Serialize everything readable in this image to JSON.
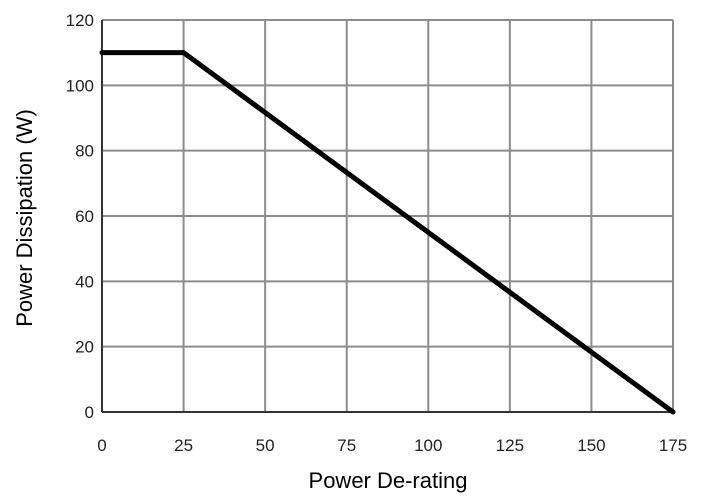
{
  "chart_data": {
    "type": "line",
    "title": "",
    "xlabel": "Power De-rating",
    "ylabel": "Power Dissipation (W)",
    "xlim": [
      0,
      175
    ],
    "ylim": [
      0,
      120
    ],
    "xticks": [
      0,
      25,
      50,
      75,
      100,
      125,
      150,
      175
    ],
    "yticks": [
      0,
      20,
      40,
      60,
      80,
      100,
      120
    ],
    "grid": true,
    "legend": "none",
    "series": [
      {
        "x": [
          0,
          25,
          175
        ],
        "y": [
          110,
          110,
          0
        ],
        "color": "#000000"
      }
    ]
  }
}
